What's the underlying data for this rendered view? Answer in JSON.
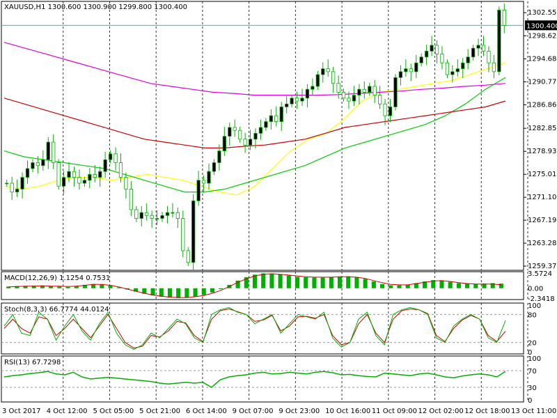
{
  "header": {
    "symbol": "XAUUSD,H1",
    "ohlc": "1300.600 1300.900 1299.800 1300.400",
    "text": "XAUUSD,H1  1300.600 1300.900 1299.800 1300.400"
  },
  "colors": {
    "background": "#ffffff",
    "candle_up": "#00b000",
    "candle_down": "#00b000",
    "ma_fast": "#ffff00",
    "ma_mid": "#00d000",
    "ma_slow": "#dd00dd",
    "ma_red": "#cc0000",
    "grid": "#000000",
    "price_line": "#7a9a9a",
    "macd_hist": "#00b000",
    "macd_signal": "#cc0000",
    "stoch_main": "#00b000",
    "stoch_signal": "#cc0000",
    "rsi": "#00b000"
  },
  "chart_data": [
    {
      "type": "candlestick",
      "name": "XAUUSD,H1",
      "ylim": [
        1259.375,
        1304.0
      ],
      "y_ticks": [
        "1302.550",
        "1298.620",
        "1294.680",
        "1290.770",
        "1286.860",
        "1282.855",
        "1278.930",
        "1275.015",
        "1271.105",
        "1267.195",
        "1263.285",
        "1259.375"
      ],
      "current_price": "1300.400",
      "x_ticks": [
        "3 Oct 2017",
        "4 Oct 12:00",
        "5 Oct 05:00",
        "5 Oct 21:00",
        "6 Oct 14:00",
        "9 Oct 07:00",
        "9 Oct 23:00",
        "10 Oct 16:00",
        "11 Oct 09:00",
        "12 Oct 02:00",
        "12 Oct 18:00",
        "13 Oct 11:00"
      ],
      "close_path": [
        1273.5,
        1272.0,
        1272.5,
        1274.5,
        1276.0,
        1277.0,
        1276.5,
        1277.5,
        1280.5,
        1277.0,
        1273.0,
        1274.5,
        1275.5,
        1274.5,
        1273.5,
        1274.0,
        1275.0,
        1274.5,
        1275.5,
        1277.5,
        1278.5,
        1277.0,
        1274.5,
        1272.5,
        1269.0,
        1267.5,
        1268.5,
        1268.0,
        1267.5,
        1267.5,
        1268.0,
        1268.5,
        1268.5,
        1267.5,
        1262.0,
        1260.0,
        1270.5,
        1274.0,
        1273.5,
        1275.5,
        1277.0,
        1279.0,
        1281.5,
        1283.0,
        1282.5,
        1281.0,
        1280.0,
        1281.0,
        1282.0,
        1283.0,
        1284.0,
        1285.0,
        1284.0,
        1286.5,
        1287.0,
        1288.0,
        1287.5,
        1288.0,
        1289.5,
        1290.0,
        1292.0,
        1293.0,
        1292.5,
        1290.5,
        1289.0,
        1288.0,
        1287.5,
        1288.5,
        1289.5,
        1289.0,
        1290.0,
        1288.5,
        1287.0,
        1285.0,
        1286.5,
        1291.5,
        1292.5,
        1293.0,
        1292.5,
        1294.0,
        1295.0,
        1296.0,
        1297.0,
        1295.5,
        1294.0,
        1292.0,
        1292.5,
        1293.0,
        1294.0,
        1295.0,
        1296.5,
        1297.0,
        1296.0,
        1294.0,
        1292.5,
        1303.0,
        1300.4
      ],
      "moving_averages": [
        {
          "color_key": "ma_fast",
          "values": [
            1273.0,
            1272.5,
            1273.0,
            1274.0,
            1274.5,
            1274.5,
            1274.0,
            1274.5,
            1275.0,
            1274.5,
            1274.0,
            1273.0,
            1272.0,
            1271.5,
            1273.0,
            1276.0,
            1279.0,
            1281.0,
            1282.0,
            1284.5,
            1287.5,
            1289.0,
            1289.5,
            1290.0,
            1290.5,
            1291.0,
            1292.0,
            1293.0,
            1294.0
          ]
        },
        {
          "color_key": "ma_mid",
          "values": [
            1279.0,
            1278.0,
            1277.5,
            1277.0,
            1276.5,
            1276.0,
            1275.0,
            1274.0,
            1273.0,
            1272.0,
            1272.0,
            1272.5,
            1273.5,
            1274.5,
            1275.5,
            1276.5,
            1278.0,
            1279.5,
            1280.5,
            1281.5,
            1282.5,
            1283.5,
            1285.0,
            1287.0,
            1289.5,
            1291.5
          ]
        },
        {
          "color_key": "ma_red",
          "values": [
            1288.0,
            1287.0,
            1286.0,
            1285.0,
            1284.0,
            1283.0,
            1282.0,
            1281.0,
            1280.5,
            1280.0,
            1279.5,
            1279.5,
            1279.8,
            1280.0,
            1280.5,
            1281.0,
            1282.0,
            1283.0,
            1283.5,
            1284.0,
            1284.5,
            1285.0,
            1285.5,
            1286.0,
            1286.5,
            1287.5
          ]
        },
        {
          "color_key": "ma_slow",
          "values": [
            1297.5,
            1296.5,
            1295.5,
            1294.5,
            1293.5,
            1292.5,
            1291.5,
            1290.5,
            1290.0,
            1289.5,
            1289.0,
            1288.8,
            1288.5,
            1288.5,
            1288.5,
            1288.5,
            1288.6,
            1288.8,
            1289.0,
            1289.2,
            1289.5,
            1289.7,
            1290.0,
            1290.2,
            1290.5
          ]
        }
      ]
    },
    {
      "type": "histogram",
      "name": "MACD(12,26,9) 1.1254 0.7531",
      "label": "MACD(12,26,9) 1.1254 0.7531",
      "ylim": [
        -2.3418,
        3.5724
      ],
      "y_ticks": [
        "3.5724",
        "0.00",
        "-2.3418"
      ],
      "hist_values": [
        0.4,
        0.5,
        0.5,
        0.6,
        0.6,
        0.5,
        0.4,
        0.3,
        0.5,
        0.8,
        1.0,
        0.9,
        0.6,
        0.2,
        -0.3,
        -0.8,
        -1.3,
        -1.7,
        -2.0,
        -2.2,
        -2.3,
        -2.2,
        -2.0,
        -1.6,
        -1.0,
        -0.2,
        0.8,
        1.8,
        2.6,
        3.2,
        3.5,
        3.5,
        3.3,
        3.0,
        2.7,
        2.6,
        2.5,
        2.5,
        2.6,
        2.7,
        2.8,
        2.6,
        2.2,
        1.6,
        1.0,
        0.7,
        0.7,
        0.8,
        1.2,
        1.6,
        1.9,
        1.8,
        1.5,
        1.2,
        1.1,
        1.0,
        1.1,
        1.2,
        1.1
      ],
      "signal_values": [
        0.3,
        0.4,
        0.5,
        0.5,
        0.6,
        0.5,
        0.5,
        0.4,
        0.5,
        0.7,
        0.9,
        0.9,
        0.7,
        0.3,
        -0.2,
        -0.7,
        -1.2,
        -1.6,
        -1.9,
        -2.1,
        -2.2,
        -2.2,
        -2.0,
        -1.7,
        -1.2,
        -0.5,
        0.4,
        1.4,
        2.2,
        2.9,
        3.3,
        3.4,
        3.3,
        3.1,
        2.9,
        2.7,
        2.6,
        2.6,
        2.6,
        2.7,
        2.7,
        2.6,
        2.3,
        1.8,
        1.3,
        0.9,
        0.8,
        0.8,
        1.1,
        1.4,
        1.7,
        1.8,
        1.6,
        1.3,
        1.1,
        1.0,
        1.0,
        1.0,
        0.8
      ]
    },
    {
      "type": "line",
      "name": "Stoch(8,3,3) 66.7774 44.0124",
      "label": "Stoch(8,3,3) 66.7774 44.0124",
      "ylim": [
        0,
        100
      ],
      "y_ticks": [
        "100",
        "80",
        "20",
        "0"
      ],
      "levels": [
        80,
        20
      ],
      "main_values": [
        55,
        80,
        40,
        35,
        85,
        70,
        25,
        55,
        80,
        45,
        25,
        60,
        85,
        40,
        15,
        5,
        15,
        40,
        30,
        50,
        70,
        60,
        30,
        20,
        80,
        90,
        95,
        85,
        80,
        60,
        70,
        80,
        40,
        60,
        80,
        75,
        70,
        85,
        30,
        10,
        20,
        70,
        85,
        35,
        15,
        80,
        90,
        95,
        90,
        80,
        30,
        20,
        55,
        70,
        80,
        70,
        30,
        20,
        67
      ],
      "signal_values": [
        50,
        70,
        50,
        40,
        75,
        70,
        35,
        50,
        70,
        50,
        30,
        55,
        80,
        50,
        20,
        8,
        12,
        35,
        32,
        45,
        65,
        62,
        35,
        22,
        70,
        88,
        92,
        86,
        80,
        65,
        68,
        78,
        45,
        55,
        75,
        76,
        72,
        80,
        35,
        15,
        20,
        60,
        80,
        40,
        20,
        70,
        88,
        92,
        90,
        82,
        35,
        22,
        50,
        68,
        78,
        70,
        35,
        22,
        44
      ]
    },
    {
      "type": "line",
      "name": "RSI(13) 67.7298",
      "label": "RSI(13) 67.7298",
      "ylim": [
        0,
        100
      ],
      "y_ticks": [
        "100",
        "70",
        "30",
        "0"
      ],
      "levels": [
        70,
        30
      ],
      "values": [
        55,
        58,
        60,
        63,
        65,
        68,
        62,
        60,
        66,
        55,
        50,
        52,
        54,
        52,
        50,
        48,
        46,
        44,
        40,
        38,
        40,
        42,
        40,
        42,
        30,
        48,
        55,
        58,
        60,
        64,
        66,
        62,
        63,
        66,
        64,
        62,
        66,
        68,
        65,
        60,
        61,
        58,
        56,
        55,
        64,
        62,
        60,
        58,
        62,
        64,
        60,
        55,
        53,
        57,
        60,
        62,
        60,
        55,
        68
      ]
    }
  ]
}
